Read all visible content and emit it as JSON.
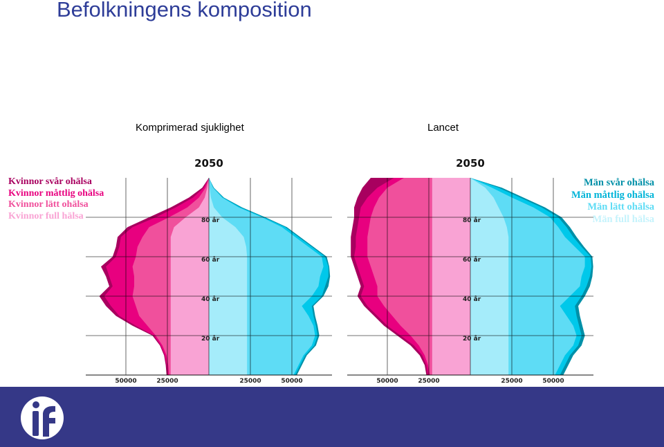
{
  "page": {
    "title": "Befolkningens komposition",
    "subtitle_left": "Komprimerad sjuklighet",
    "subtitle_right": "Lancet"
  },
  "legend_women": [
    "Kvinnor svår ohälsa",
    "Kvinnor måttlig ohälsa",
    "Kvinnor lätt ohälsa",
    "Kvinnor full hälsa"
  ],
  "legend_men": [
    "Män svår ohälsa",
    "Män måttlig ohälsa",
    "Män lätt ohälsa",
    "Män full hälsa"
  ],
  "colors": {
    "women": [
      "#a8005f",
      "#e8007f",
      "#f0509c",
      "#f9a3d4"
    ],
    "men": [
      "#0090a8",
      "#00c8ea",
      "#5edcf5",
      "#a5ecfa"
    ],
    "footer": "#353887",
    "title": "#2e3d98"
  },
  "icons": {
    "footer_logo": "organization-logo-icon"
  },
  "chart_data": [
    {
      "type": "area",
      "title": "2050",
      "ages": [
        0,
        5,
        10,
        15,
        20,
        25,
        30,
        35,
        40,
        45,
        50,
        55,
        60,
        65,
        70,
        75,
        80,
        85,
        90,
        95,
        100
      ],
      "age_labels": [
        "20 år",
        "40 år",
        "60 år",
        "80 år"
      ],
      "x_tick_labels": [
        "50000",
        "25000",
        "25000",
        "50000"
      ],
      "xlim": [
        -75000,
        75000
      ],
      "ylim": [
        0,
        100
      ],
      "series": [
        {
          "name": "Kvinnor full hälsa",
          "values": [
            23000,
            23000,
            23000,
            23000,
            23000,
            23000,
            23000,
            23000,
            23000,
            23000,
            23000,
            23000,
            23000,
            23000,
            23000,
            21000,
            14000,
            6000,
            2500,
            1000,
            0
          ]
        },
        {
          "name": "Kvinnor lätt ohälsa",
          "values": [
            24000,
            24500,
            25500,
            28000,
            32000,
            37000,
            42000,
            44000,
            46000,
            45000,
            45000,
            46000,
            44000,
            43000,
            40000,
            36000,
            24000,
            13000,
            6000,
            2000,
            0
          ]
        },
        {
          "name": "Kvinnor måttlig ohälsa",
          "values": [
            25000,
            25500,
            26500,
            29000,
            33000,
            44000,
            54000,
            59000,
            63000,
            58000,
            60000,
            62000,
            56000,
            54000,
            53000,
            46000,
            32000,
            20000,
            9500,
            3000,
            0
          ]
        },
        {
          "name": "Kvinnor svår ohälsa",
          "values": [
            25500,
            26000,
            27000,
            29500,
            34000,
            46000,
            56000,
            62000,
            66000,
            60000,
            62000,
            65000,
            58000,
            56000,
            55000,
            49000,
            36000,
            23000,
            12000,
            4000,
            0
          ]
        },
        {
          "name": "Män full hälsa",
          "values": [
            23000,
            23000,
            23000,
            23000,
            23000,
            23000,
            23000,
            23000,
            23000,
            23000,
            23000,
            23000,
            23000,
            22500,
            21000,
            16000,
            8000,
            3000,
            1200,
            400,
            0
          ]
        },
        {
          "name": "Män lätt ohälsa",
          "values": [
            51000,
            54000,
            57000,
            62000,
            64000,
            63000,
            60000,
            56000,
            62000,
            66000,
            67000,
            69000,
            68000,
            60000,
            52000,
            44000,
            32000,
            18000,
            8000,
            2500,
            0
          ]
        },
        {
          "name": "Män måttlig ohälsa",
          "values": [
            52000,
            55000,
            58000,
            63500,
            65500,
            64500,
            63000,
            62000,
            68000,
            70000,
            72000,
            72000,
            70000,
            62000,
            54000,
            46000,
            33000,
            19000,
            8500,
            2700,
            0
          ]
        },
        {
          "name": "Män svår ohälsa",
          "values": [
            53000,
            56000,
            59000,
            64500,
            66500,
            65500,
            64000,
            63000,
            69000,
            72000,
            73000,
            72500,
            71000,
            63000,
            55000,
            47000,
            34000,
            20000,
            9000,
            3000,
            0
          ]
        }
      ]
    },
    {
      "type": "area",
      "title": "2050",
      "ages": [
        0,
        5,
        10,
        15,
        20,
        25,
        30,
        35,
        40,
        45,
        50,
        55,
        60,
        65,
        70,
        75,
        80,
        85,
        90,
        95,
        100
      ],
      "age_labels": [
        "20 år",
        "40 år",
        "60 år",
        "80 år"
      ],
      "x_tick_labels": [
        "50000",
        "25000",
        "25000",
        "50000"
      ],
      "xlim": [
        -75000,
        75000
      ],
      "ylim": [
        0,
        100
      ],
      "series": [
        {
          "name": "Kvinnor full hälsa",
          "values": [
            23000,
            23000,
            23000,
            23000,
            23000,
            23000,
            23000,
            23000,
            23000,
            23000,
            23000,
            23000,
            23000,
            23000,
            23000,
            23000,
            23000,
            23000,
            23000,
            23000,
            23000
          ]
        },
        {
          "name": "Kvinnor lätt ohälsa",
          "values": [
            24500,
            25500,
            27500,
            31000,
            36000,
            42000,
            47000,
            52000,
            56000,
            56000,
            58000,
            60000,
            62000,
            62000,
            62000,
            61000,
            60000,
            58000,
            55000,
            50000,
            40000
          ]
        },
        {
          "name": "Kvinnor måttlig ohälsa",
          "values": [
            25500,
            26500,
            29000,
            34000,
            42000,
            50000,
            56000,
            62000,
            66000,
            64000,
            66000,
            68000,
            70000,
            69000,
            69000,
            68000,
            67000,
            66000,
            62000,
            56000,
            46000
          ]
        },
        {
          "name": "Kvinnor svår ohälsa",
          "values": [
            26500,
            27500,
            30500,
            36000,
            44000,
            52000,
            58000,
            64000,
            68000,
            66000,
            68000,
            70000,
            72000,
            72000,
            72000,
            71000,
            70000,
            70000,
            68000,
            65000,
            60000
          ]
        },
        {
          "name": "Män full hälsa",
          "values": [
            23000,
            23000,
            23000,
            23000,
            23000,
            23000,
            23000,
            23000,
            23000,
            23000,
            23000,
            23000,
            23000,
            23000,
            23000,
            22000,
            20000,
            17000,
            14000,
            9000,
            0
          ]
        },
        {
          "name": "Män lätt ohälsa",
          "values": [
            51000,
            54000,
            57000,
            62000,
            64000,
            62000,
            58000,
            54000,
            60000,
            66000,
            67000,
            69000,
            69000,
            63000,
            57000,
            53000,
            48000,
            38000,
            25000,
            13000,
            0
          ]
        },
        {
          "name": "Män måttlig ohälsa",
          "values": [
            54000,
            57000,
            60000,
            65000,
            67000,
            65500,
            64000,
            63000,
            67000,
            70000,
            72000,
            73000,
            72500,
            67000,
            62000,
            58000,
            53000,
            43000,
            30000,
            17000,
            0
          ]
        },
        {
          "name": "Män svår ohälsa",
          "values": [
            56000,
            59000,
            62000,
            67000,
            69000,
            67500,
            66000,
            65000,
            69000,
            72000,
            73500,
            74000,
            73500,
            68500,
            64000,
            60000,
            55000,
            45000,
            32000,
            19000,
            0
          ]
        }
      ]
    }
  ]
}
